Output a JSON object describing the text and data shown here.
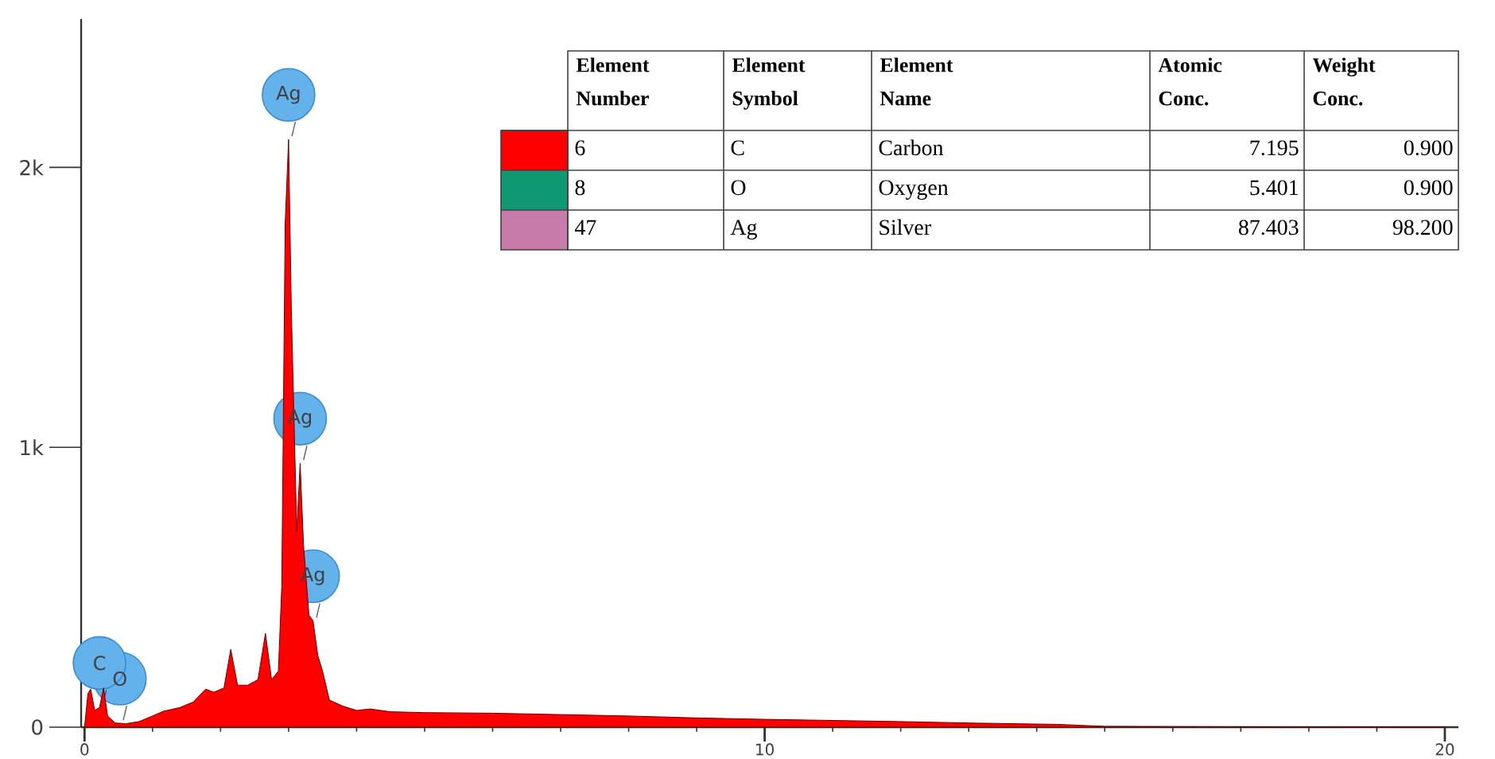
{
  "chart_data": [
    {
      "type": "area",
      "x": [
        0,
        0.05,
        0.09,
        0.15,
        0.22,
        0.28,
        0.34,
        0.45,
        0.52,
        0.6,
        0.8,
        1.0,
        1.16,
        1.4,
        1.6,
        1.78,
        1.9,
        2.05,
        2.15,
        2.25,
        2.4,
        2.55,
        2.66,
        2.75,
        2.85,
        2.9,
        2.95,
        3.0,
        3.04,
        3.08,
        3.12,
        3.17,
        3.22,
        3.3,
        3.36,
        3.43,
        3.5,
        3.6,
        3.8,
        4.0,
        4.2,
        4.5,
        5.0,
        6.0,
        7.0,
        8.0,
        9.0,
        10.0,
        11.0,
        12.0,
        13.0,
        14.3,
        15.0,
        16.0,
        18.0,
        20.0
      ],
      "series": [
        {
          "color": "#ff0000",
          "values": [
            0,
            120,
            136,
            60,
            70,
            140,
            40,
            15,
            14,
            12,
            20,
            40,
            57,
            70,
            90,
            136,
            125,
            140,
            278,
            150,
            150,
            170,
            335,
            170,
            200,
            505,
            1800,
            2100,
            1500,
            1100,
            700,
            943,
            650,
            400,
            380,
            256,
            200,
            97,
            75,
            60,
            65,
            55,
            52,
            50,
            45,
            40,
            33,
            28,
            24,
            20,
            15,
            10,
            3,
            2,
            1,
            0
          ]
        }
      ],
      "xlim": [
        -0.05,
        20.2
      ],
      "ylim": [
        0,
        2530
      ],
      "xticks": [
        0,
        10,
        20
      ],
      "yticks": [
        {
          "value": 0,
          "label": "0"
        },
        {
          "value": 1000,
          "label": "1k"
        },
        {
          "value": 2000,
          "label": "2k"
        }
      ],
      "annotations": [
        {
          "text": "Ag",
          "x": 3.0,
          "y": 2100
        },
        {
          "text": "Ag",
          "x": 3.17,
          "y": 943
        },
        {
          "text": "Ag",
          "x": 3.36,
          "y": 380
        },
        {
          "text": "O",
          "x": 0.52,
          "y": 14
        },
        {
          "text": "C",
          "x": 0.22,
          "y": 70
        }
      ]
    },
    {
      "type": "other",
      "categories": [
        "Element Number",
        "Element Symbol",
        "Element Name",
        "Atomic Conc.",
        "Weight Conc."
      ],
      "cell_labels": [
        [
          "6",
          "C",
          "Carbon",
          "7.195",
          "0.900"
        ],
        [
          "8",
          "O",
          "Oxygen",
          "5.401",
          "0.900"
        ],
        [
          "47",
          "Ag",
          "Silver",
          "87.403",
          "98.200"
        ]
      ],
      "colors": [
        "#ff0000",
        "#0f9a73",
        "#c87aab"
      ]
    }
  ]
}
